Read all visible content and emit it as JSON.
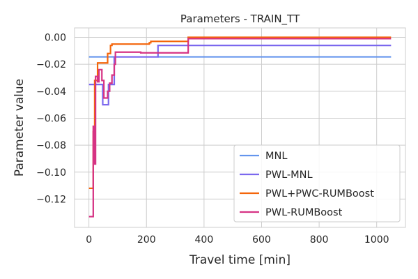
{
  "chart_data": {
    "type": "line",
    "title": "Parameters - TRAIN_TT",
    "xlabel": "Travel time [min]",
    "ylabel": "Parameter value",
    "xlim": [
      -50,
      1100
    ],
    "ylim": [
      -0.141,
      0.007
    ],
    "xticks": [
      0,
      200,
      400,
      600,
      800,
      1000
    ],
    "yticks": [
      -0.12,
      -0.1,
      -0.08,
      -0.06,
      -0.04,
      -0.02,
      0.0
    ],
    "xtick_labels": [
      "0",
      "200",
      "400",
      "600",
      "800",
      "1000"
    ],
    "ytick_labels": [
      "−0.12",
      "−0.10",
      "−0.08",
      "−0.06",
      "−0.04",
      "−0.02",
      "0.00"
    ],
    "grid": true,
    "legend_position": "bottom-right",
    "series": [
      {
        "name": "MNL",
        "color": "#6495ED",
        "step": true,
        "points": [
          [
            0,
            -0.0145
          ],
          [
            1050,
            -0.0145
          ]
        ]
      },
      {
        "name": "PWL-MNL",
        "color": "#7B68EE",
        "step": true,
        "points": [
          [
            0,
            -0.035
          ],
          [
            48,
            -0.035
          ],
          [
            48,
            -0.05
          ],
          [
            68,
            -0.05
          ],
          [
            68,
            -0.035
          ],
          [
            88,
            -0.035
          ],
          [
            88,
            -0.0145
          ],
          [
            240,
            -0.0145
          ],
          [
            240,
            -0.006
          ],
          [
            1050,
            -0.006
          ]
        ]
      },
      {
        "name": "PWL+PWC-RUMBoost",
        "color": "#F4650A",
        "step": true,
        "points": [
          [
            0,
            -0.112
          ],
          [
            15,
            -0.112
          ],
          [
            15,
            -0.07
          ],
          [
            20,
            -0.07
          ],
          [
            20,
            -0.032
          ],
          [
            30,
            -0.032
          ],
          [
            30,
            -0.019
          ],
          [
            65,
            -0.019
          ],
          [
            65,
            -0.012
          ],
          [
            75,
            -0.012
          ],
          [
            75,
            -0.006
          ],
          [
            80,
            -0.006
          ],
          [
            80,
            -0.005
          ],
          [
            210,
            -0.005
          ],
          [
            210,
            -0.004
          ],
          [
            215,
            -0.004
          ],
          [
            215,
            -0.003
          ],
          [
            345,
            -0.003
          ],
          [
            345,
            0.0
          ],
          [
            1050,
            0.0
          ]
        ]
      },
      {
        "name": "PWL-RUMBoost",
        "color": "#D63384",
        "step": true,
        "points": [
          [
            0,
            -0.133
          ],
          [
            15,
            -0.133
          ],
          [
            15,
            -0.066
          ],
          [
            20,
            -0.066
          ],
          [
            20,
            -0.094
          ],
          [
            23,
            -0.094
          ],
          [
            23,
            -0.029
          ],
          [
            30,
            -0.029
          ],
          [
            30,
            -0.033
          ],
          [
            35,
            -0.033
          ],
          [
            35,
            -0.024
          ],
          [
            45,
            -0.024
          ],
          [
            45,
            -0.032
          ],
          [
            52,
            -0.032
          ],
          [
            52,
            -0.045
          ],
          [
            65,
            -0.045
          ],
          [
            65,
            -0.04
          ],
          [
            72,
            -0.04
          ],
          [
            72,
            -0.034
          ],
          [
            80,
            -0.034
          ],
          [
            80,
            -0.028
          ],
          [
            88,
            -0.028
          ],
          [
            88,
            -0.02
          ],
          [
            92,
            -0.02
          ],
          [
            92,
            -0.011
          ],
          [
            180,
            -0.011
          ],
          [
            180,
            -0.0115
          ],
          [
            345,
            -0.0115
          ],
          [
            345,
            -0.001
          ],
          [
            1050,
            -0.001
          ]
        ]
      }
    ]
  }
}
